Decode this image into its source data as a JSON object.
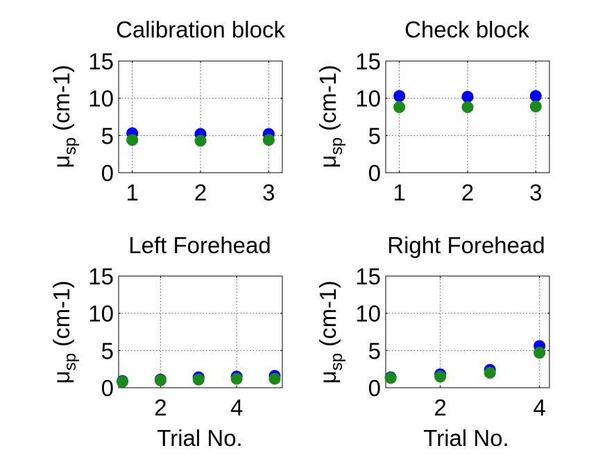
{
  "chart_data": [
    {
      "type": "scatter",
      "title": "Calibration block",
      "xlabel": "",
      "ylabel_symbol": "μ",
      "ylabel_subscript": "sp",
      "ylabel_unit": " (cm-1)",
      "xlim": [
        0.8,
        3.2
      ],
      "ylim": [
        0,
        15
      ],
      "xticks": [
        1,
        2,
        3
      ],
      "yticks": [
        0,
        5,
        10,
        15
      ],
      "grid": true,
      "series": [
        {
          "color": "#0000ff",
          "x": [
            1,
            2,
            3
          ],
          "y": [
            5.3,
            5.2,
            5.2
          ]
        },
        {
          "color": "#1a8a1a",
          "x": [
            1,
            2,
            3
          ],
          "y": [
            4.4,
            4.3,
            4.4
          ]
        }
      ]
    },
    {
      "type": "scatter",
      "title": "Check block",
      "xlabel": "",
      "ylabel_symbol": "μ",
      "ylabel_subscript": "sp",
      "ylabel_unit": " (cm-1)",
      "xlim": [
        0.8,
        3.2
      ],
      "ylim": [
        0,
        15
      ],
      "xticks": [
        1,
        2,
        3
      ],
      "yticks": [
        0,
        5,
        10,
        15
      ],
      "grid": true,
      "series": [
        {
          "color": "#0000ff",
          "x": [
            1,
            2,
            3
          ],
          "y": [
            10.3,
            10.2,
            10.3
          ]
        },
        {
          "color": "#1a8a1a",
          "x": [
            1,
            2,
            3
          ],
          "y": [
            8.8,
            8.8,
            8.9
          ]
        }
      ]
    },
    {
      "type": "scatter",
      "title": "Left Forehead",
      "xlabel": "Trial No.",
      "ylabel_symbol": "μ",
      "ylabel_subscript": "sp",
      "ylabel_unit": " (cm-1)",
      "xlim": [
        0.9,
        5.2
      ],
      "ylim": [
        0,
        15
      ],
      "xticks": [
        2,
        4
      ],
      "yticks": [
        0,
        5,
        10,
        15
      ],
      "grid": true,
      "series": [
        {
          "color": "#0000ff",
          "x": [
            1,
            2,
            3,
            4,
            5
          ],
          "y": [
            0.9,
            1.1,
            1.4,
            1.5,
            1.6
          ]
        },
        {
          "color": "#1a8a1a",
          "x": [
            1,
            2,
            3,
            4,
            5
          ],
          "y": [
            0.8,
            1.0,
            1.1,
            1.2,
            1.2
          ]
        }
      ]
    },
    {
      "type": "scatter",
      "title": "Right Forehead",
      "xlabel": "Trial No.",
      "ylabel_symbol": "μ",
      "ylabel_subscript": "sp",
      "ylabel_unit": " (cm-1)",
      "xlim": [
        0.9,
        4.2
      ],
      "ylim": [
        0,
        15
      ],
      "xticks": [
        2,
        4
      ],
      "yticks": [
        0,
        5,
        10,
        15
      ],
      "grid": true,
      "series": [
        {
          "color": "#0000ff",
          "x": [
            1,
            2,
            3,
            4
          ],
          "y": [
            1.4,
            1.8,
            2.4,
            5.6
          ]
        },
        {
          "color": "#1a8a1a",
          "x": [
            1,
            2,
            3,
            4
          ],
          "y": [
            1.3,
            1.5,
            2.0,
            4.7
          ]
        }
      ]
    }
  ]
}
